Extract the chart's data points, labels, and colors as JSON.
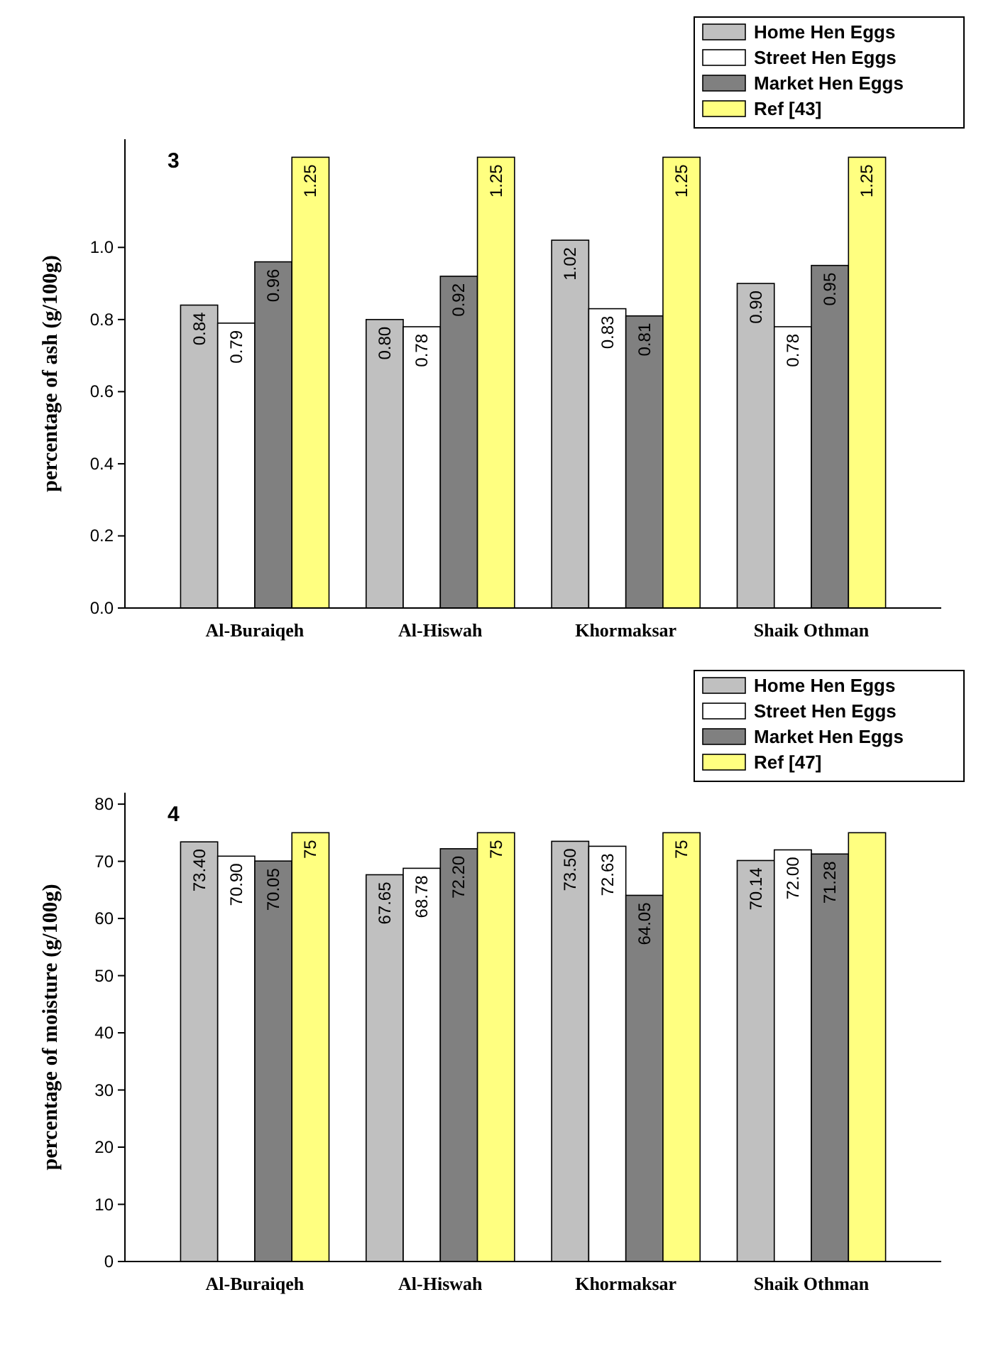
{
  "chart_data": [
    {
      "type": "bar",
      "ylabel": "percentage of ash  (g/100g)",
      "annotations": [
        "3"
      ],
      "categories": [
        "Al-Buraiqeh",
        "Al-Hiswah",
        "Khormaksar",
        "Shaik Othman"
      ],
      "ylim": [
        0,
        1.3
      ],
      "yticks": [
        {
          "value": 0,
          "label": "0.0"
        },
        {
          "value": 0.2,
          "label": "0.2"
        },
        {
          "value": 0.4,
          "label": "0.4"
        },
        {
          "value": 0.6,
          "label": "0.6"
        },
        {
          "value": 0.8,
          "label": "0.8"
        },
        {
          "value": 1,
          "label": "1.0"
        }
      ],
      "legend": "top right",
      "grid": false,
      "series": [
        {
          "name": "Home Hen Eggs",
          "color": "#c0c0c0",
          "values": [
            0.84,
            0.8,
            1.02,
            0.9
          ],
          "value_labels": [
            "0.84",
            "0.80",
            "1.02",
            "0.90"
          ]
        },
        {
          "name": "Street Hen Eggs",
          "color": "#ffffff",
          "values": [
            0.79,
            0.78,
            0.83,
            0.78
          ],
          "value_labels": [
            "0.79",
            "0.78",
            "0.83",
            "0.78"
          ]
        },
        {
          "name": "Market Hen Eggs",
          "color": "#808080",
          "values": [
            0.96,
            0.92,
            0.81,
            0.95
          ],
          "value_labels": [
            "0.96",
            "0.92",
            "0.81",
            "0.95"
          ]
        },
        {
          "name": "Ref [43]",
          "color": "#ffff80",
          "values": [
            1.25,
            1.25,
            1.25,
            1.25
          ],
          "value_labels": [
            "1.25",
            "1.25",
            "1.25",
            "1.25"
          ]
        }
      ]
    },
    {
      "type": "bar",
      "ylabel": "percentage of moisture (g/100g)",
      "annotations": [
        "4"
      ],
      "categories": [
        "Al-Buraiqeh",
        "Al-Hiswah",
        "Khormaksar",
        "Shaik Othman"
      ],
      "ylim": [
        0,
        82
      ],
      "yticks": [
        0,
        10,
        20,
        30,
        40,
        50,
        60,
        70,
        80
      ],
      "legend": "top right",
      "grid": false,
      "series": [
        {
          "name": "Home Hen Eggs",
          "color": "#c0c0c0",
          "values": [
            73.4,
            67.65,
            73.5,
            70.14
          ],
          "value_labels": [
            "73.40",
            "67.65",
            "73.50",
            "70.14"
          ]
        },
        {
          "name": "Street Hen Eggs",
          "color": "#ffffff",
          "values": [
            70.9,
            68.78,
            72.63,
            72.0
          ],
          "value_labels": [
            "70.90",
            "68.78",
            "72.63",
            "72.00"
          ]
        },
        {
          "name": "Market Hen Eggs",
          "color": "#808080",
          "values": [
            70.05,
            72.2,
            64.05,
            71.28
          ],
          "value_labels": [
            "70.05",
            "72.20",
            "64.05",
            "71.28"
          ]
        },
        {
          "name": "Ref [47]",
          "color": "#ffff80",
          "values": [
            75,
            75,
            75,
            75
          ],
          "value_labels": [
            "75",
            "75",
            "75",
            null
          ]
        }
      ]
    }
  ]
}
